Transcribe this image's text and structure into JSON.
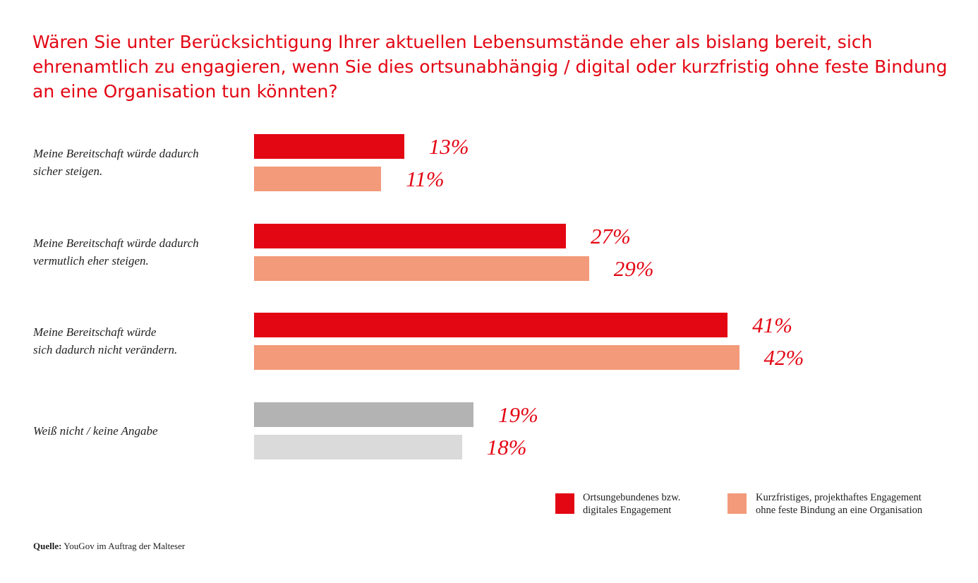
{
  "chart_data": {
    "type": "bar",
    "orientation": "horizontal",
    "title": "Wären Sie unter Berücksichtigung Ihrer aktuellen Lebensumstände eher als bislang bereit, sich ehrenamtlich zu engagieren, wenn Sie dies ortsunabhängig / digital oder kurzfristig ohne feste Bindung an eine Organisation tun könnten?",
    "categories": [
      [
        "Meine Bereitschaft würde dadurch",
        "sicher steigen."
      ],
      [
        "Meine Bereitschaft würde dadurch",
        "vermutlich eher steigen."
      ],
      [
        "Meine Bereitschaft würde",
        "sich dadurch nicht verändern."
      ],
      [
        "Weiß nicht / keine Angabe"
      ]
    ],
    "series": [
      {
        "name": "Ortsungebundenes bzw. digitales Engagement",
        "legend_lines": [
          "Ortsungebundenes bzw.",
          "digitales Engagement"
        ],
        "color": "#e30613",
        "values": [
          13,
          27,
          41,
          19
        ],
        "labels": [
          "13%",
          "27%",
          "41%",
          "19%"
        ]
      },
      {
        "name": "Kurzfristiges, projekthaftes Engagement ohne feste Bindung an eine Organisation",
        "legend_lines": [
          "Kurzfristiges, projekthaftes Engagement",
          "ohne feste Bindung an eine Organisation"
        ],
        "color": "#f29a7a",
        "values": [
          11,
          29,
          42,
          18
        ],
        "labels": [
          "11%",
          "29%",
          "42%",
          "18%"
        ]
      }
    ],
    "last_category_colors": [
      "#b3b3b3",
      "#dadada"
    ],
    "unit": "%",
    "xlim": [
      0,
      50
    ],
    "grid": false,
    "legend_position": "bottom-right"
  },
  "source": {
    "label": "Quelle:",
    "text": "YouGov im Auftrag der Malteser"
  }
}
